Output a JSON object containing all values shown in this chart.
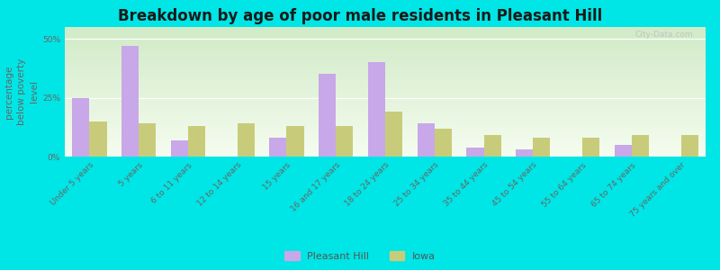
{
  "title": "Breakdown by age of poor male residents in Pleasant Hill",
  "categories": [
    "Under 5 years",
    "5 years",
    "6 to 11 years",
    "12 to 14 years",
    "15 years",
    "16 and 17 years",
    "18 to 24 years",
    "25 to 34 years",
    "35 to 44 years",
    "45 to 54 years",
    "55 to 64 years",
    "65 to 74 years",
    "75 years and over"
  ],
  "pleasant_hill": [
    25,
    47,
    7,
    0,
    8,
    35,
    40,
    14,
    4,
    3,
    0,
    5,
    0
  ],
  "iowa": [
    15,
    14,
    13,
    14,
    13,
    13,
    19,
    12,
    9,
    8,
    8,
    9,
    9
  ],
  "pleasant_hill_color": "#c8a8e8",
  "iowa_color": "#c8cc7a",
  "title_color": "#1a1a1a",
  "ylabel": "percentage\nbelow poverty\nlevel",
  "ylim": [
    0,
    55
  ],
  "yticks": [
    0,
    25,
    50
  ],
  "ytick_labels": [
    "0%",
    "25%",
    "50%"
  ],
  "outer_bg": "#00e5e5",
  "bar_width": 0.35,
  "title_fontsize": 12,
  "axis_label_fontsize": 7.5,
  "tick_fontsize": 6.5,
  "legend_label_ph": "Pleasant Hill",
  "legend_label_iowa": "Iowa",
  "grid_color": "#ffffff",
  "plot_bg_color": "#e8f2e0"
}
